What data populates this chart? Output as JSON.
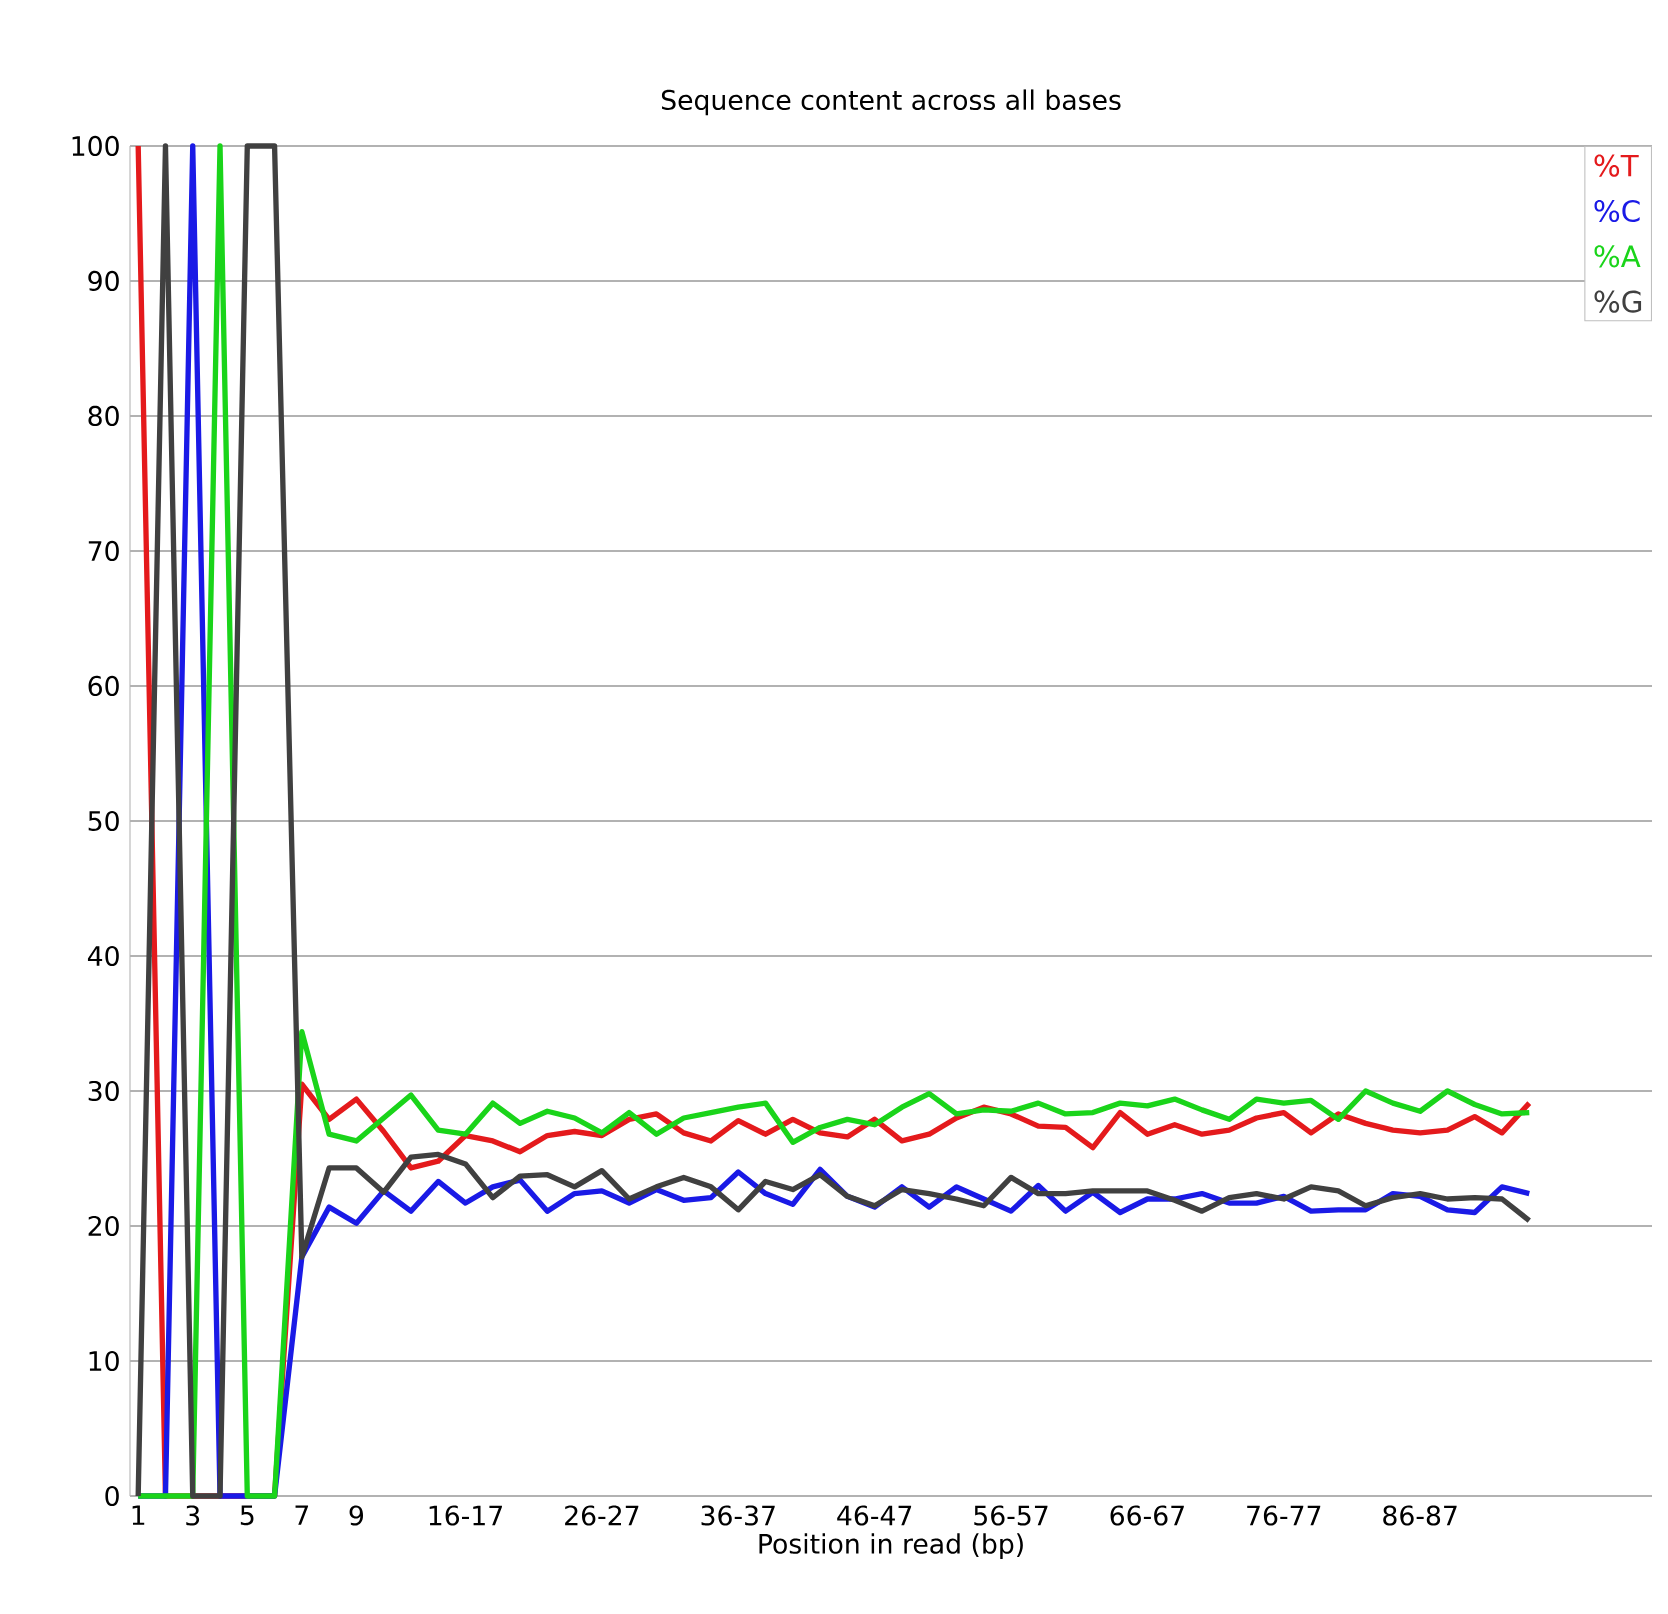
{
  "chart_data": {
    "type": "line",
    "title": "Sequence content across all bases",
    "xlabel": "Position in read (bp)",
    "categories": [
      "1",
      null,
      "3",
      null,
      "5",
      null,
      "7",
      null,
      "9",
      null,
      null,
      null,
      "16-17",
      null,
      null,
      null,
      null,
      "26-27",
      null,
      null,
      null,
      null,
      "36-37",
      null,
      null,
      null,
      null,
      "46-47",
      null,
      null,
      null,
      null,
      "56-57",
      null,
      null,
      null,
      null,
      "66-67",
      null,
      null,
      null,
      null,
      "76-77",
      null,
      null,
      null,
      null,
      "86-87",
      null,
      null,
      null,
      null
    ],
    "series": [
      {
        "name": "%T",
        "color": "#e41a1c",
        "values": [
          100,
          0,
          0,
          0,
          0,
          0,
          30.5,
          27.9,
          29.4,
          27,
          24.3,
          24.8,
          26.7,
          26.3,
          25.5,
          26.7,
          27,
          26.7,
          27.9,
          28.3,
          26.9,
          26.3,
          27.8,
          26.8,
          27.9,
          26.9,
          26.6,
          27.9,
          26.3,
          26.8,
          28,
          28.8,
          28.3,
          27.4,
          27.3,
          25.8,
          28.4,
          26.8,
          27.5,
          26.8,
          27.1,
          28,
          28.4,
          26.9,
          28.3,
          27.6,
          27.1,
          26.9,
          27.1,
          28.1,
          26.9,
          29.1
        ]
      },
      {
        "name": "%C",
        "color": "#1a1ae6",
        "values": [
          0,
          0,
          100,
          0,
          0,
          0,
          17.7,
          21.4,
          20.2,
          22.6,
          21.1,
          23.3,
          21.7,
          22.9,
          23.4,
          21.1,
          22.4,
          22.6,
          21.7,
          22.7,
          21.9,
          22.1,
          24,
          22.4,
          21.6,
          24.2,
          22.2,
          21.4,
          22.9,
          21.4,
          22.9,
          22,
          21.1,
          23,
          21.1,
          22.5,
          21,
          22,
          22,
          22.4,
          21.7,
          21.7,
          22.2,
          21.1,
          21.2,
          21.2,
          22.4,
          22.2,
          21.2,
          21,
          22.9,
          22.4
        ]
      },
      {
        "name": "%A",
        "color": "#1ad41a",
        "values": [
          0,
          0,
          0,
          100,
          0,
          0,
          34.4,
          26.8,
          26.3,
          28,
          29.7,
          27.1,
          26.8,
          29.1,
          27.6,
          28.5,
          28,
          26.9,
          28.4,
          26.8,
          28,
          28.4,
          28.8,
          29.1,
          26.2,
          27.3,
          27.9,
          27.5,
          28.8,
          29.8,
          28.3,
          28.6,
          28.5,
          29.1,
          28.3,
          28.4,
          29.1,
          28.9,
          29.4,
          28.6,
          27.9,
          29.4,
          29.1,
          29.3,
          27.9,
          30,
          29.1,
          28.5,
          30,
          29,
          28.3,
          28.4
        ]
      },
      {
        "name": "%G",
        "color": "#404040",
        "values": [
          0,
          100,
          0,
          0,
          100,
          100,
          17.7,
          24.3,
          24.3,
          22.5,
          25.1,
          25.3,
          24.6,
          22.1,
          23.7,
          23.8,
          22.9,
          24.1,
          22,
          22.9,
          23.6,
          22.9,
          21.2,
          23.3,
          22.7,
          23.8,
          22.2,
          21.5,
          22.7,
          22.4,
          22,
          21.5,
          23.6,
          22.4,
          22.4,
          22.6,
          22.6,
          22.6,
          21.9,
          21.1,
          22.1,
          22.4,
          22,
          22.9,
          22.6,
          21.5,
          22.1,
          22.4,
          22,
          22.1,
          22,
          20.4
        ]
      }
    ],
    "ylim": [
      0,
      100
    ],
    "yticks": [
      0,
      10,
      20,
      30,
      40,
      50,
      60,
      70,
      80,
      90,
      100
    ],
    "grid": "y",
    "legend": "top right",
    "marker": "none",
    "line_style": "solid"
  }
}
